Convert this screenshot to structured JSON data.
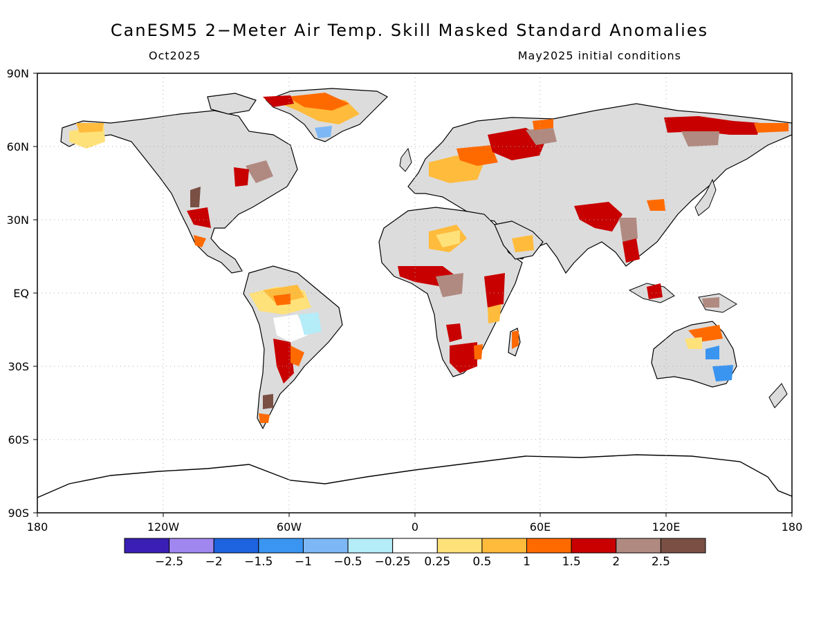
{
  "title": "CanESM5 2−Meter Air Temp. Skill Masked Standard Anomalies",
  "subtitle_left": "Oct2025",
  "subtitle_right": "May2025 initial conditions",
  "map": {
    "projection": "equirectangular",
    "lon_range": [
      -180,
      180
    ],
    "lat_range": [
      -90,
      90
    ],
    "gridlines": "dotted",
    "land_masked_color": "#dcdcdc",
    "ocean_color": "#ffffff",
    "x_tick_labels": [
      "180",
      "120W",
      "60W",
      "0",
      "60E",
      "120E",
      "180"
    ],
    "y_tick_labels": [
      "90N",
      "60N",
      "30N",
      "EQ",
      "30S",
      "60S",
      "90S"
    ]
  },
  "colorbar": {
    "colors": [
      "#3a1fb4",
      "#a087f0",
      "#1e63e0",
      "#3a95f0",
      "#7db8f5",
      "#b4ecf8",
      "#ffffff",
      "#ffe17a",
      "#ffbb3c",
      "#ff6a00",
      "#c80000",
      "#b08a80",
      "#7a5044"
    ],
    "labels": [
      "−2.5",
      "−2",
      "−1.5",
      "−1",
      "−0.5",
      "−0.25",
      "0.25",
      "0.5",
      "1",
      "1.5",
      "2",
      "2.5"
    ]
  }
}
